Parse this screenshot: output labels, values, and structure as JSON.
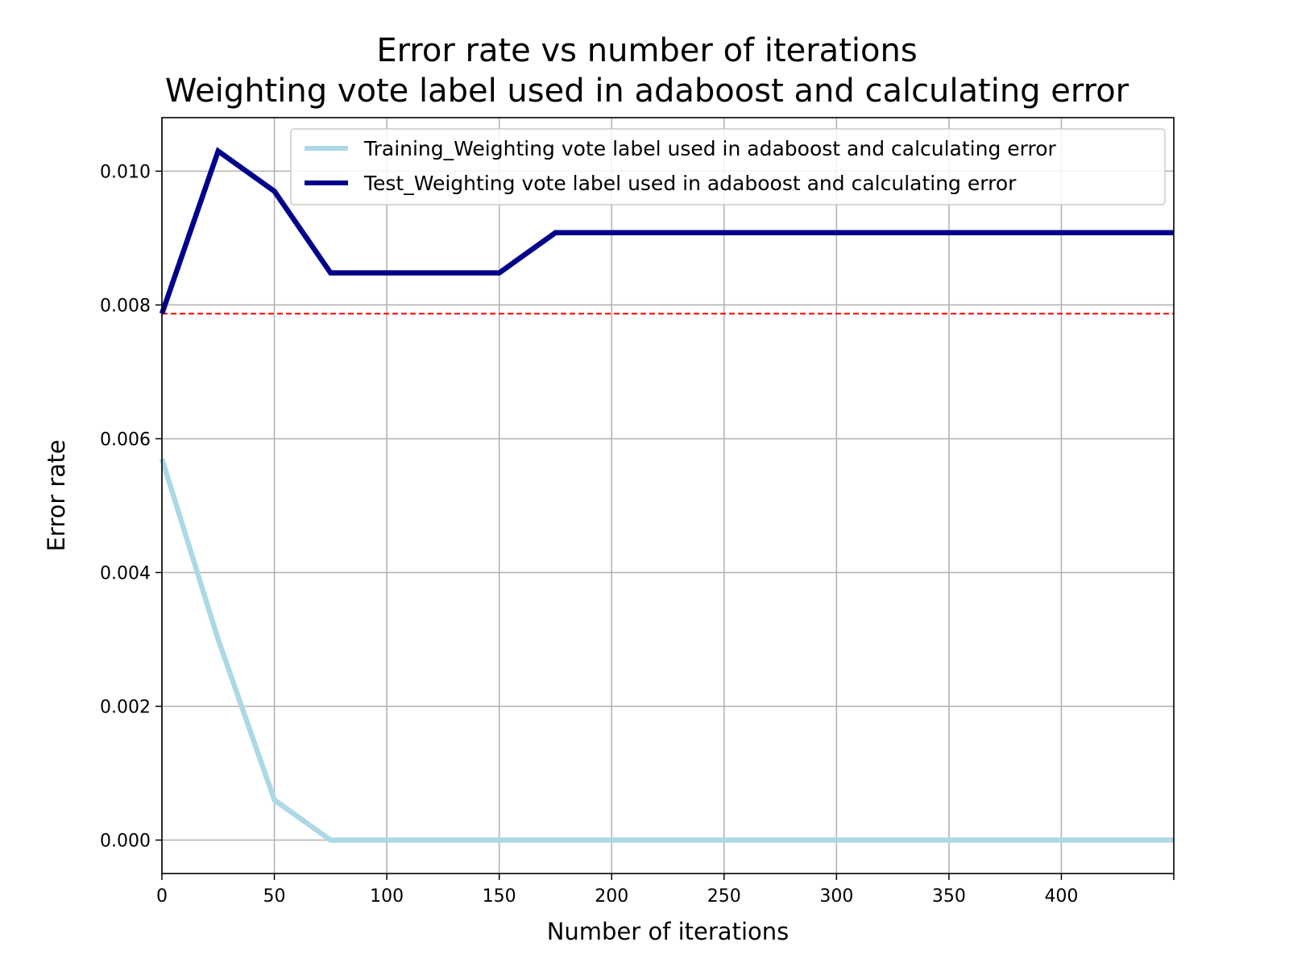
{
  "chart_data": {
    "type": "line",
    "title": "Error rate vs number of iterations",
    "subtitle": "Weighting vote label used in adaboost and calculating error",
    "xlabel": "Number of iterations",
    "ylabel": "Error rate",
    "xlim": [
      0,
      450
    ],
    "ylim": [
      -0.0005,
      0.0108
    ],
    "x_ticks": [
      0,
      50,
      100,
      150,
      200,
      250,
      300,
      350,
      400
    ],
    "y_ticks": [
      0.0,
      0.002,
      0.004,
      0.006,
      0.008,
      0.01
    ],
    "y_tick_labels": [
      "0.000",
      "0.002",
      "0.004",
      "0.006",
      "0.008",
      "0.010"
    ],
    "x_tick_labels": [
      "0",
      "50",
      "100",
      "150",
      "200",
      "250",
      "300",
      "350",
      "400"
    ],
    "grid": true,
    "legend_position": "top-right",
    "series": [
      {
        "name": "Training_Weighting vote label used in adaboost and calculating error",
        "color": "#add8e6",
        "x": [
          0,
          25,
          50,
          75,
          100,
          125,
          150,
          175,
          200,
          225,
          250,
          275,
          300,
          325,
          350,
          375,
          400,
          425,
          450
        ],
        "values": [
          0.0057,
          0.003,
          0.0006,
          0.0,
          0.0,
          0.0,
          0.0,
          0.0,
          0.0,
          0.0,
          0.0,
          0.0,
          0.0,
          0.0,
          0.0,
          0.0,
          0.0,
          0.0,
          0.0
        ]
      },
      {
        "name": "Test_Weighting vote label used in adaboost and calculating error",
        "color": "#00008b",
        "x": [
          0,
          25,
          50,
          75,
          100,
          125,
          150,
          175,
          200,
          225,
          250,
          275,
          300,
          325,
          350,
          375,
          400,
          425,
          450
        ],
        "values": [
          0.00787,
          0.0103,
          0.0097,
          0.00848,
          0.00848,
          0.00848,
          0.00848,
          0.00908,
          0.00908,
          0.00908,
          0.00908,
          0.00908,
          0.00908,
          0.00908,
          0.00908,
          0.00908,
          0.00908,
          0.00908,
          0.00908
        ]
      }
    ],
    "reference_line": {
      "value": 0.00787,
      "color": "#ff0000",
      "style": "dashed"
    }
  }
}
